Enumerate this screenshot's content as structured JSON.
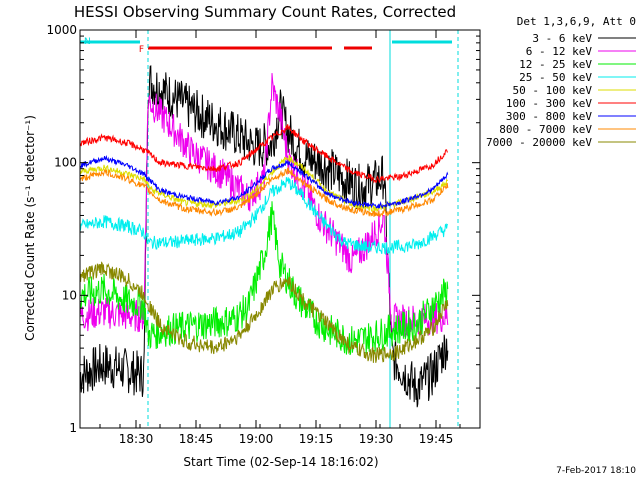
{
  "chart_data": {
    "type": "line",
    "title": "HESSI Observing Summary Count Rates, Corrected",
    "xlabel": "Start Time (02-Sep-14 18:16:02)",
    "ylabel": "Corrected Count Rate (s⁻¹ detector⁻¹)",
    "ylog": true,
    "ylim": [
      1,
      1000
    ],
    "xlim_minutes": [
      0,
      100
    ],
    "x_tick_labels": [
      "18:30",
      "18:45",
      "19:00",
      "19:15",
      "19:30",
      "19:45"
    ],
    "x_ticks_minutes": [
      14,
      29,
      44,
      59,
      74,
      89
    ],
    "y_tick_labels": [
      "1",
      "10",
      "100",
      "1000"
    ],
    "y_ticks": [
      1,
      10,
      100,
      1000
    ],
    "legend_header": "Det 1,3,6,9, Att 0",
    "legend_position": "right",
    "footer_date": "7-Feb-2017 18:10",
    "series": [
      {
        "name": "3 - 6 keV",
        "color": "#000000",
        "points": [
          [
            0,
            2.5
          ],
          [
            6,
            3
          ],
          [
            10,
            2.8
          ],
          [
            16,
            2.5
          ],
          [
            17,
            420
          ],
          [
            22,
            330
          ],
          [
            30,
            230
          ],
          [
            38,
            170
          ],
          [
            44,
            130
          ],
          [
            48,
            140
          ],
          [
            50,
            250
          ],
          [
            52,
            170
          ],
          [
            56,
            110
          ],
          [
            60,
            100
          ],
          [
            66,
            75
          ],
          [
            70,
            65
          ],
          [
            74,
            72
          ],
          [
            76,
            80
          ],
          [
            78,
            3.5
          ],
          [
            84,
            2
          ],
          [
            88,
            2.5
          ],
          [
            92,
            4.5
          ]
        ]
      },
      {
        "name": "6 - 12 keV",
        "color": "#ee00ee",
        "points": [
          [
            0,
            7
          ],
          [
            6,
            7.5
          ],
          [
            12,
            7
          ],
          [
            16,
            7
          ],
          [
            17,
            300
          ],
          [
            22,
            200
          ],
          [
            28,
            120
          ],
          [
            36,
            80
          ],
          [
            42,
            55
          ],
          [
            46,
            75
          ],
          [
            48,
            380
          ],
          [
            50,
            230
          ],
          [
            52,
            110
          ],
          [
            56,
            65
          ],
          [
            60,
            38
          ],
          [
            66,
            22
          ],
          [
            68,
            18
          ],
          [
            72,
            25
          ],
          [
            76,
            38
          ],
          [
            78,
            6.5
          ],
          [
            84,
            6.5
          ],
          [
            92,
            7
          ]
        ]
      },
      {
        "name": "12 - 25 keV",
        "color": "#00ee00",
        "points": [
          [
            0,
            10
          ],
          [
            6,
            11
          ],
          [
            12,
            9
          ],
          [
            16,
            8.5
          ],
          [
            17,
            5
          ],
          [
            22,
            5.5
          ],
          [
            30,
            6
          ],
          [
            38,
            6.5
          ],
          [
            42,
            8
          ],
          [
            46,
            20
          ],
          [
            48,
            40
          ],
          [
            50,
            17
          ],
          [
            54,
            10
          ],
          [
            58,
            7
          ],
          [
            62,
            5.5
          ],
          [
            68,
            4.5
          ],
          [
            74,
            5
          ],
          [
            78,
            5.5
          ],
          [
            84,
            6
          ],
          [
            92,
            11
          ]
        ]
      },
      {
        "name": "25 - 50 keV",
        "color": "#00eeee",
        "points": [
          [
            0,
            33
          ],
          [
            6,
            36
          ],
          [
            12,
            33
          ],
          [
            16,
            30
          ],
          [
            17,
            25
          ],
          [
            22,
            25
          ],
          [
            28,
            26
          ],
          [
            34,
            27
          ],
          [
            40,
            30
          ],
          [
            44,
            40
          ],
          [
            48,
            60
          ],
          [
            52,
            72
          ],
          [
            56,
            55
          ],
          [
            60,
            38
          ],
          [
            66,
            25
          ],
          [
            72,
            23
          ],
          [
            78,
            23
          ],
          [
            84,
            24
          ],
          [
            92,
            32
          ]
        ]
      },
      {
        "name": "50 - 100 keV",
        "color": "#dddd00",
        "points": [
          [
            0,
            85
          ],
          [
            6,
            92
          ],
          [
            12,
            82
          ],
          [
            16,
            75
          ],
          [
            18,
            62
          ],
          [
            26,
            50
          ],
          [
            34,
            48
          ],
          [
            40,
            52
          ],
          [
            44,
            62
          ],
          [
            48,
            85
          ],
          [
            52,
            110
          ],
          [
            56,
            90
          ],
          [
            62,
            60
          ],
          [
            68,
            48
          ],
          [
            74,
            45
          ],
          [
            80,
            50
          ],
          [
            88,
            60
          ],
          [
            92,
            72
          ]
        ]
      },
      {
        "name": "100 - 300 keV",
        "color": "#ff0000",
        "points": [
          [
            0,
            140
          ],
          [
            6,
            155
          ],
          [
            12,
            140
          ],
          [
            16,
            125
          ],
          [
            20,
            100
          ],
          [
            26,
            95
          ],
          [
            34,
            90
          ],
          [
            40,
            100
          ],
          [
            44,
            125
          ],
          [
            48,
            155
          ],
          [
            52,
            185
          ],
          [
            56,
            145
          ],
          [
            62,
            110
          ],
          [
            68,
            85
          ],
          [
            74,
            75
          ],
          [
            80,
            78
          ],
          [
            88,
            95
          ],
          [
            92,
            125
          ]
        ]
      },
      {
        "name": "300 - 800 keV",
        "color": "#0000ff",
        "points": [
          [
            0,
            95
          ],
          [
            6,
            108
          ],
          [
            12,
            95
          ],
          [
            16,
            82
          ],
          [
            20,
            62
          ],
          [
            26,
            55
          ],
          [
            34,
            50
          ],
          [
            40,
            55
          ],
          [
            44,
            70
          ],
          [
            48,
            90
          ],
          [
            52,
            100
          ],
          [
            56,
            82
          ],
          [
            62,
            58
          ],
          [
            68,
            50
          ],
          [
            74,
            47
          ],
          [
            80,
            50
          ],
          [
            88,
            62
          ],
          [
            92,
            82
          ]
        ]
      },
      {
        "name": "800 - 7000 keV",
        "color": "#ff8800",
        "points": [
          [
            0,
            75
          ],
          [
            6,
            85
          ],
          [
            12,
            75
          ],
          [
            16,
            66
          ],
          [
            20,
            52
          ],
          [
            26,
            45
          ],
          [
            34,
            42
          ],
          [
            40,
            46
          ],
          [
            44,
            58
          ],
          [
            48,
            75
          ],
          [
            52,
            88
          ],
          [
            56,
            70
          ],
          [
            62,
            52
          ],
          [
            68,
            44
          ],
          [
            74,
            41
          ],
          [
            80,
            44
          ],
          [
            88,
            52
          ],
          [
            92,
            68
          ]
        ]
      },
      {
        "name": "7000 - 20000 keV",
        "color": "#888800",
        "points": [
          [
            0,
            14
          ],
          [
            6,
            16
          ],
          [
            12,
            13
          ],
          [
            16,
            10
          ],
          [
            20,
            6
          ],
          [
            26,
            4.5
          ],
          [
            34,
            4
          ],
          [
            40,
            5
          ],
          [
            44,
            7
          ],
          [
            48,
            11
          ],
          [
            52,
            13
          ],
          [
            56,
            9
          ],
          [
            62,
            6
          ],
          [
            68,
            4
          ],
          [
            74,
            3.5
          ],
          [
            80,
            3.8
          ],
          [
            88,
            5.5
          ],
          [
            92,
            9
          ]
        ]
      }
    ],
    "flag_bars": [
      {
        "label": "F",
        "color": "#ee0000",
        "ranges_minutes": [
          [
            17,
            63
          ],
          [
            66,
            73
          ]
        ]
      },
      {
        "label": "N",
        "color": "#00dddd",
        "ranges_minutes": [
          [
            0,
            15
          ],
          [
            78,
            93
          ]
        ]
      }
    ],
    "vertical_markers_minutes": [
      {
        "x": 17,
        "color": "#00dddd",
        "dashed": true
      },
      {
        "x": 77.5,
        "color": "#00dddd",
        "dashed": false
      },
      {
        "x": 94.5,
        "color": "#00dddd",
        "dashed": true
      }
    ]
  }
}
